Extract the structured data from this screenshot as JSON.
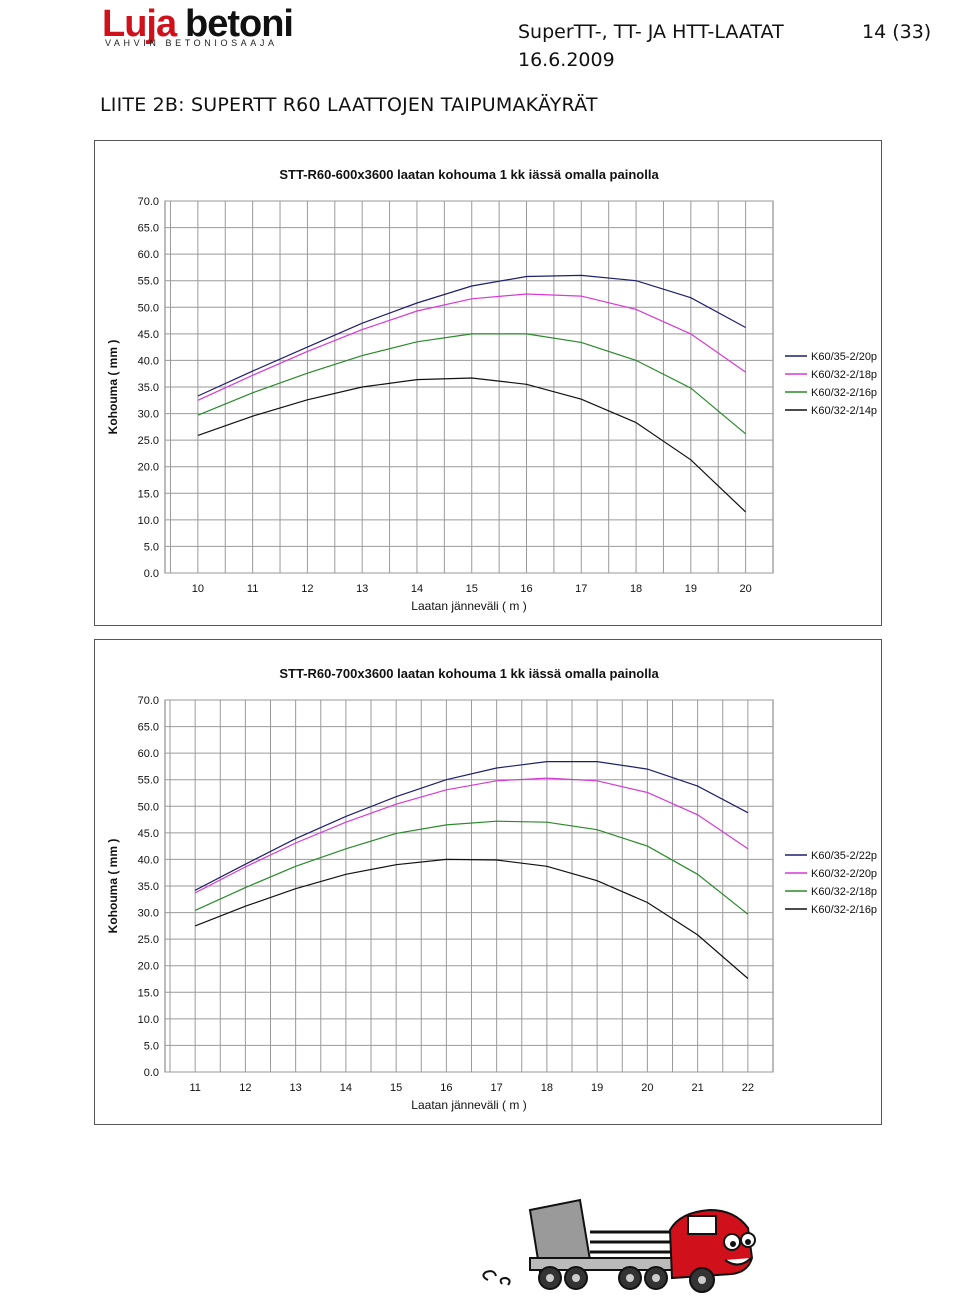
{
  "header": {
    "logo_text": "Lujabetoni",
    "logo_tagline": "VAHVIN BETONIOSAAJA",
    "doc_title": "SuperTT-, TT- JA HTT-LAATAT",
    "doc_date": "16.6.2009",
    "page_number": "14 (33)"
  },
  "section_title": "LIITE 2B: SUPERTT R60 LAATTOJEN TAIPUMAKÄYRÄT",
  "colors": {
    "navy": "#1f1f6e",
    "magenta": "#d63ad6",
    "green": "#2a8a2a",
    "black": "#111111"
  },
  "chart_data": [
    {
      "type": "line",
      "title": "STT-R60-600x3600 laatan kohouma 1 kk iässä omalla painolla",
      "xlabel": "Laatan jänneväli ( m )",
      "ylabel": "Kohouma ( mm )",
      "x": [
        10,
        11,
        12,
        13,
        14,
        15,
        16,
        17,
        18,
        19,
        20
      ],
      "xlim": [
        9.4,
        20.5
      ],
      "ylim": [
        0,
        70
      ],
      "yticks": [
        "0.0",
        "5.0",
        "10.0",
        "15.0",
        "20.0",
        "25.0",
        "30.0",
        "35.0",
        "40.0",
        "45.0",
        "50.0",
        "55.0",
        "60.0",
        "65.0",
        "70.0"
      ],
      "grid": true,
      "legend_position": "right",
      "series": [
        {
          "name": "K60/35-2/20p",
          "color": "#1f1f6e",
          "values": [
            33.3,
            38.0,
            42.5,
            47.0,
            50.8,
            54.0,
            55.8,
            56.0,
            55.0,
            51.8,
            46.2
          ]
        },
        {
          "name": "K60/32-2/18p",
          "color": "#d63ad6",
          "values": [
            32.5,
            37.2,
            41.7,
            45.8,
            49.3,
            51.6,
            52.5,
            52.1,
            49.6,
            45.0,
            37.8
          ]
        },
        {
          "name": "K60/32-2/16p",
          "color": "#2a8a2a",
          "values": [
            29.7,
            33.9,
            37.6,
            40.9,
            43.5,
            45.0,
            45.0,
            43.4,
            40.0,
            34.8,
            26.2
          ]
        },
        {
          "name": "K60/32-2/14p",
          "color": "#111111",
          "values": [
            25.9,
            29.5,
            32.6,
            35.0,
            36.4,
            36.7,
            35.5,
            32.7,
            28.3,
            21.3,
            11.5
          ]
        }
      ]
    },
    {
      "type": "line",
      "title": "STT-R60-700x3600 laatan kohouma 1 kk iässä omalla painolla",
      "xlabel": "Laatan jänneväli ( m )",
      "ylabel": "Kohouma ( mm )",
      "x": [
        11,
        12,
        13,
        14,
        15,
        16,
        17,
        18,
        19,
        20,
        21,
        22
      ],
      "xlim": [
        10.4,
        22.5
      ],
      "ylim": [
        0,
        70
      ],
      "yticks": [
        "0.0",
        "5.0",
        "10.0",
        "15.0",
        "20.0",
        "25.0",
        "30.0",
        "35.0",
        "40.0",
        "45.0",
        "50.0",
        "55.0",
        "60.0",
        "65.0",
        "70.0"
      ],
      "grid": true,
      "legend_position": "right",
      "series": [
        {
          "name": "K60/35-2/22p",
          "color": "#1f1f6e",
          "values": [
            34.2,
            39.1,
            43.9,
            48.1,
            51.8,
            55.0,
            57.2,
            58.4,
            58.4,
            57.0,
            53.8,
            48.8
          ]
        },
        {
          "name": "K60/32-2/20p",
          "color": "#d63ad6",
          "values": [
            33.7,
            38.6,
            43.1,
            47.0,
            50.4,
            53.1,
            54.8,
            55.3,
            54.8,
            52.6,
            48.4,
            42.0
          ]
        },
        {
          "name": "K60/32-2/18p",
          "color": "#2a8a2a",
          "values": [
            30.4,
            34.7,
            38.7,
            42.0,
            44.9,
            46.5,
            47.2,
            47.0,
            45.6,
            42.5,
            37.2,
            29.7
          ]
        },
        {
          "name": "K60/32-2/16p",
          "color": "#111111",
          "values": [
            27.5,
            31.2,
            34.5,
            37.2,
            39.0,
            40.0,
            39.9,
            38.7,
            36.0,
            31.9,
            25.8,
            17.6
          ]
        }
      ]
    }
  ]
}
